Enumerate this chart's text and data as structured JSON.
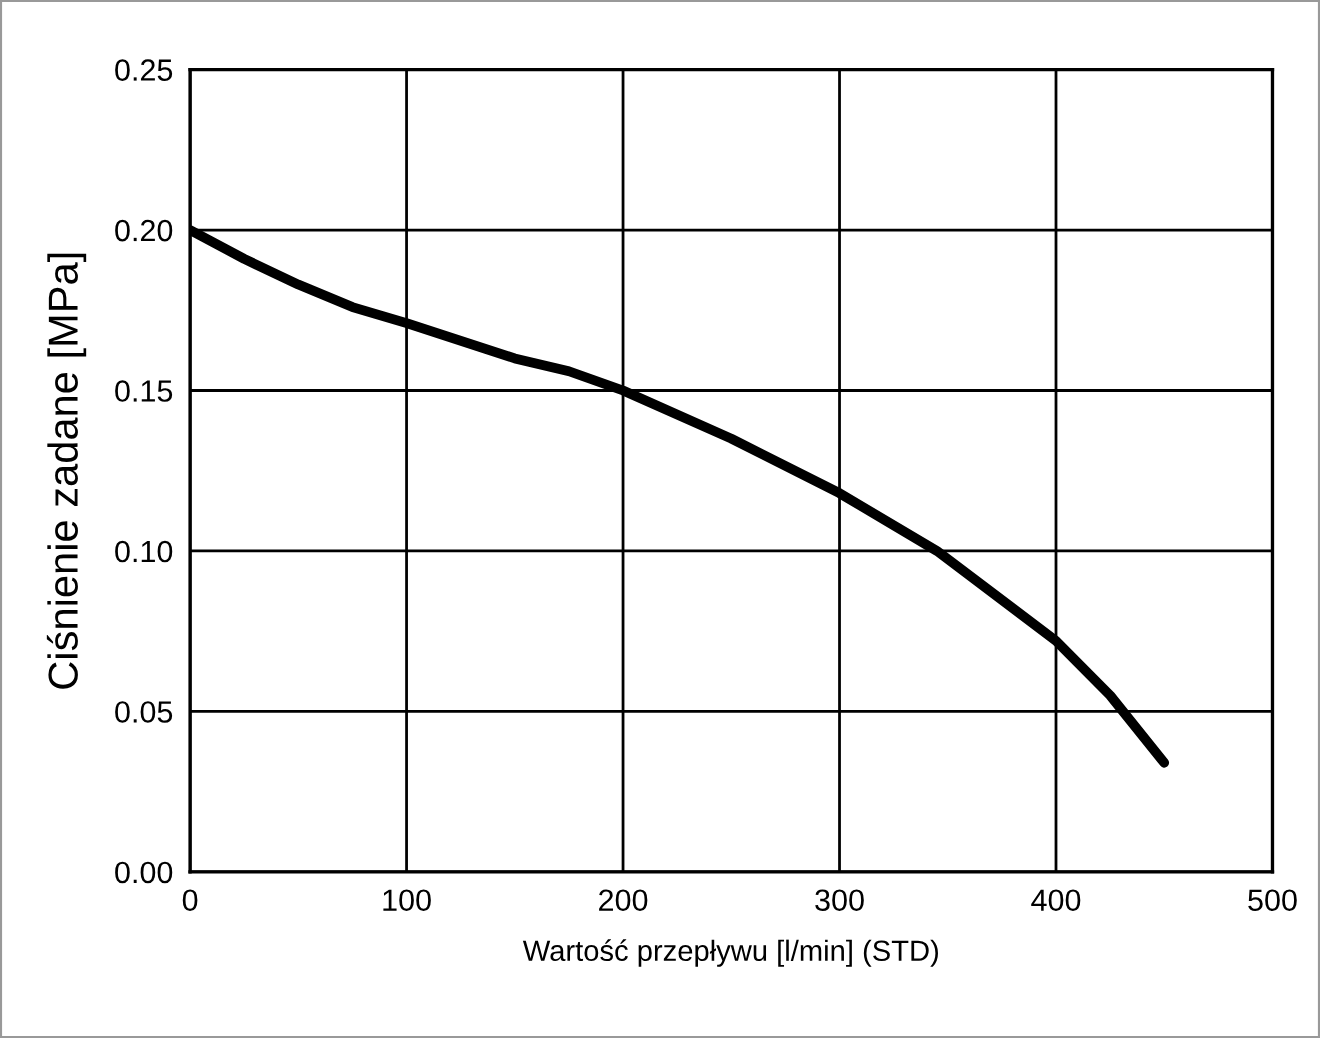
{
  "chart_data": {
    "type": "line",
    "xlabel": "Wartość przepływu [l/min] (STD)",
    "ylabel": "Ciśnienie zadane [MPa]",
    "x": [
      0,
      25,
      50,
      75,
      100,
      150,
      175,
      200,
      250,
      300,
      345,
      400,
      425,
      450
    ],
    "series": [
      {
        "color": "#000000",
        "values": [
          0.2,
          0.191,
          0.183,
          0.176,
          0.171,
          0.16,
          0.156,
          0.15,
          0.135,
          0.118,
          0.1,
          0.072,
          0.055,
          0.034
        ]
      }
    ],
    "xlim": [
      0,
      500
    ],
    "xticks": [
      0,
      100,
      200,
      300,
      400,
      500
    ],
    "ylim": [
      0,
      0.25
    ],
    "yticks": [
      {
        "value": 0,
        "label": "0.00"
      },
      {
        "value": 0.05,
        "label": "0.05"
      },
      {
        "value": 0.1,
        "label": "0.10"
      },
      {
        "value": 0.15,
        "label": "0.15"
      },
      {
        "value": 0.2,
        "label": "0.20"
      },
      {
        "value": 0.25,
        "label": "0.25"
      }
    ],
    "grid": true,
    "marker": "none",
    "line_style": "solid",
    "legend": false
  }
}
